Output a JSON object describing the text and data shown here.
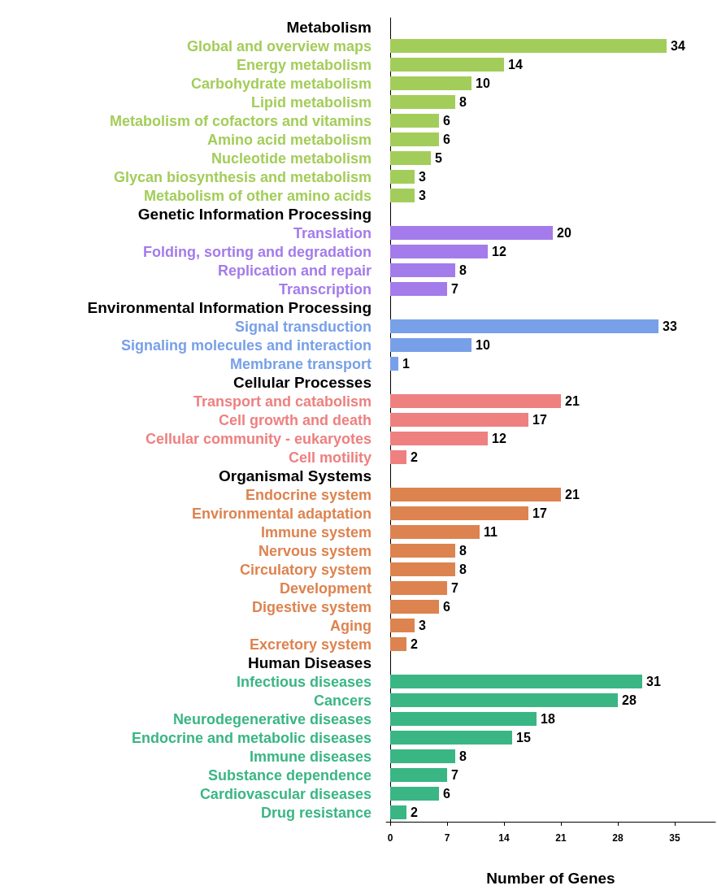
{
  "chart_data": {
    "type": "bar",
    "orientation": "horizontal",
    "xlabel": "Number of Genes",
    "data_labels": true,
    "categories": [
      "Metabolism",
      "Global and overview maps",
      "Energy metabolism",
      "Carbohydrate metabolism",
      "Lipid metabolism",
      "Metabolism of cofactors and vitamins",
      "Amino acid metabolism",
      "Nucleotide metabolism",
      "Glycan biosynthesis and metabolism",
      "Metabolism of other amino acids",
      "Genetic Information Processing",
      "Translation",
      "Folding, sorting and degradation",
      "Replication and repair",
      "Transcription",
      "Environmental Information Processing",
      "Signal transduction",
      "Signaling molecules and interaction",
      "Membrane transport",
      "Cellular Processes",
      "Transport and catabolism",
      "Cell growth and death",
      "Cellular community - eukaryotes",
      "Cell motility",
      "Organismal Systems",
      "Endocrine system",
      "Environmental adaptation",
      "Immune system",
      "Nervous system",
      "Circulatory system",
      "Development",
      "Digestive system",
      "Aging",
      "Excretory system",
      "Human Diseases",
      "Infectious diseases",
      "Cancers",
      "Neurodegenerative diseases",
      "Endocrine and metabolic diseases",
      "Immune diseases",
      "Substance dependence",
      "Cardiovascular diseases",
      "Drug resistance"
    ],
    "values": [
      null,
      34,
      14,
      10,
      8,
      6,
      6,
      5,
      3,
      3,
      null,
      20,
      12,
      8,
      7,
      null,
      33,
      10,
      1,
      null,
      21,
      17,
      12,
      2,
      null,
      21,
      17,
      11,
      8,
      8,
      7,
      6,
      3,
      2,
      null,
      31,
      28,
      18,
      15,
      8,
      7,
      6,
      2
    ],
    "colors": [
      null,
      "#a3cd5a",
      "#a3cd5a",
      "#a3cd5a",
      "#a3cd5a",
      "#a3cd5a",
      "#a3cd5a",
      "#a3cd5a",
      "#a3cd5a",
      "#a3cd5a",
      null,
      "#a47bea",
      "#a47bea",
      "#a47bea",
      "#a47bea",
      null,
      "#78a0e8",
      "#78a0e8",
      "#78a0e8",
      null,
      "#ee8080",
      "#ee8080",
      "#ee8080",
      "#ee8080",
      null,
      "#dd834f",
      "#dd834f",
      "#dd834f",
      "#dd834f",
      "#dd834f",
      "#dd834f",
      "#dd834f",
      "#dd834f",
      "#dd834f",
      null,
      "#3ab684",
      "#3ab684",
      "#3ab684",
      "#3ab684",
      "#3ab684",
      "#3ab684",
      "#3ab684",
      "#3ab684"
    ],
    "xlim": [
      -0.5,
      40
    ],
    "xticks": [
      0,
      7,
      14,
      21,
      28,
      35
    ]
  }
}
